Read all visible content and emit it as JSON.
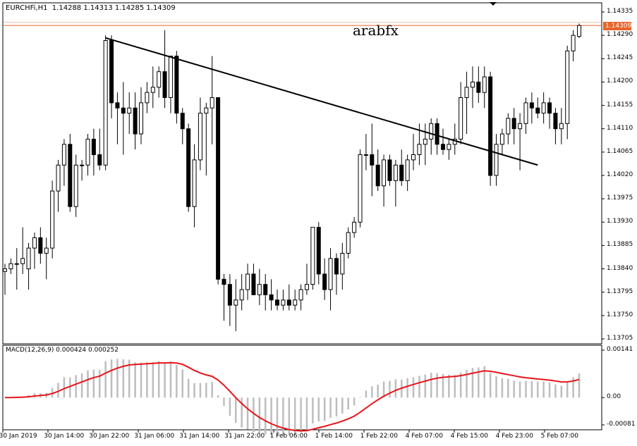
{
  "chart": {
    "symbol_info": "EURCHFi,H1  1.14288 1.14313 1.14285 1.14309",
    "watermark": "arabfx",
    "current_price": "1.14309",
    "current_price_hidden": "1.14312",
    "price_axis": [
      "1.14335",
      "1.14290",
      "1.14245",
      "1.14200",
      "1.14155",
      "1.14110",
      "1.14065",
      "1.14020",
      "1.13975",
      "1.13930",
      "1.13885",
      "1.13840",
      "1.13795",
      "1.13750",
      "1.13705"
    ],
    "time_axis": [
      "30 Jan 2019",
      "30 Jan 14:00",
      "30 Jan 22:00",
      "31 Jan 06:00",
      "31 Jan 14:00",
      "31 Jan 22:00",
      "1 Feb 06:00",
      "1 Feb 14:00",
      "1 Feb 22:00",
      "4 Feb 07:00",
      "4 Feb 15:00",
      "4 Feb 23:00",
      "5 Feb 07:00"
    ],
    "macd_label": "MACD(12,26,9) 0.000424 0.000252",
    "macd_axis": [
      "0.00141",
      "0.00",
      "-0.00081"
    ],
    "colors": {
      "bull": "#ffffff",
      "bear": "#000000",
      "signal": "#e8141a",
      "hist": "#bdbdbd",
      "price_line": "#e8642a"
    }
  },
  "chart_data": {
    "type": "candlestick",
    "title": "EURCHFi,H1",
    "ylim": [
      1.13705,
      1.14335
    ],
    "ohlc": [
      [
        1.13835,
        1.1385,
        1.1379,
        1.1384
      ],
      [
        1.1384,
        1.1386,
        1.1383,
        1.1385
      ],
      [
        1.1385,
        1.1388,
        1.138,
        1.1385
      ],
      [
        1.1385,
        1.1392,
        1.1383,
        1.1386
      ],
      [
        1.1384,
        1.1389,
        1.138,
        1.1388
      ],
      [
        1.1388,
        1.1391,
        1.1384,
        1.139
      ],
      [
        1.139,
        1.1392,
        1.1385,
        1.1387
      ],
      [
        1.1387,
        1.139,
        1.1382,
        1.1388
      ],
      [
        1.1388,
        1.1401,
        1.1386,
        1.1399
      ],
      [
        1.1399,
        1.1405,
        1.1395,
        1.1404
      ],
      [
        1.1404,
        1.1409,
        1.14,
        1.1408
      ],
      [
        1.1408,
        1.141,
        1.1395,
        1.1396
      ],
      [
        1.1396,
        1.1406,
        1.1394,
        1.1404
      ],
      [
        1.1404,
        1.1405,
        1.1401,
        1.1404
      ],
      [
        1.1404,
        1.141,
        1.1402,
        1.1409
      ],
      [
        1.1409,
        1.1411,
        1.1402,
        1.1406
      ],
      [
        1.1406,
        1.1411,
        1.1403,
        1.1404
      ],
      [
        1.1404,
        1.1429,
        1.1403,
        1.1428
      ],
      [
        1.1428,
        1.1429,
        1.1413,
        1.1416
      ],
      [
        1.1416,
        1.1418,
        1.1408,
        1.1415
      ],
      [
        1.1415,
        1.142,
        1.1406,
        1.1414
      ],
      [
        1.1414,
        1.1418,
        1.141,
        1.1415
      ],
      [
        1.1415,
        1.1418,
        1.1407,
        1.141
      ],
      [
        1.141,
        1.1419,
        1.1408,
        1.1416
      ],
      [
        1.1416,
        1.142,
        1.1414,
        1.1418
      ],
      [
        1.1418,
        1.1423,
        1.1415,
        1.1419
      ],
      [
        1.1419,
        1.1423,
        1.1417,
        1.1422
      ],
      [
        1.1422,
        1.143,
        1.1415,
        1.1417
      ],
      [
        1.1417,
        1.1425,
        1.1414,
        1.1425
      ],
      [
        1.1425,
        1.1426,
        1.1412,
        1.1414
      ],
      [
        1.1414,
        1.1415,
        1.1408,
        1.1411
      ],
      [
        1.1411,
        1.1412,
        1.1395,
        1.1396
      ],
      [
        1.1396,
        1.1408,
        1.1392,
        1.1405
      ],
      [
        1.1405,
        1.1417,
        1.1403,
        1.1414
      ],
      [
        1.1414,
        1.1416,
        1.1402,
        1.1415
      ],
      [
        1.1415,
        1.1425,
        1.1408,
        1.1417
      ],
      [
        1.1417,
        1.1417,
        1.1381,
        1.1382
      ],
      [
        1.1382,
        1.1383,
        1.1374,
        1.1381
      ],
      [
        1.1381,
        1.1383,
        1.1373,
        1.1377
      ],
      [
        1.1377,
        1.1382,
        1.1372,
        1.1378
      ],
      [
        1.1378,
        1.1383,
        1.1376,
        1.138
      ],
      [
        1.138,
        1.1385,
        1.1378,
        1.1383
      ],
      [
        1.1383,
        1.1385,
        1.1379,
        1.1379
      ],
      [
        1.1379,
        1.1384,
        1.1377,
        1.1381
      ],
      [
        1.1381,
        1.1383,
        1.1376,
        1.1379
      ],
      [
        1.1379,
        1.1382,
        1.1376,
        1.1378
      ],
      [
        1.1378,
        1.138,
        1.1376,
        1.1377
      ],
      [
        1.1377,
        1.138,
        1.1376,
        1.1378
      ],
      [
        1.1378,
        1.1381,
        1.1376,
        1.1377
      ],
      [
        1.1377,
        1.138,
        1.1376,
        1.1378
      ],
      [
        1.1378,
        1.1381,
        1.1376,
        1.138
      ],
      [
        1.138,
        1.1385,
        1.1379,
        1.1381
      ],
      [
        1.1381,
        1.1392,
        1.138,
        1.1392
      ],
      [
        1.1392,
        1.1393,
        1.1381,
        1.1383
      ],
      [
        1.1383,
        1.1386,
        1.1378,
        1.138
      ],
      [
        1.138,
        1.1388,
        1.1376,
        1.1386
      ],
      [
        1.1386,
        1.1387,
        1.1379,
        1.1383
      ],
      [
        1.1383,
        1.1389,
        1.138,
        1.1387
      ],
      [
        1.1387,
        1.1392,
        1.1386,
        1.1391
      ],
      [
        1.1391,
        1.1394,
        1.139,
        1.1393
      ],
      [
        1.1393,
        1.1407,
        1.1392,
        1.1406
      ],
      [
        1.1406,
        1.141,
        1.1403,
        1.1406
      ],
      [
        1.1406,
        1.1412,
        1.1398,
        1.1404
      ],
      [
        1.1404,
        1.1407,
        1.1399,
        1.14
      ],
      [
        1.14,
        1.1406,
        1.1396,
        1.1405
      ],
      [
        1.1405,
        1.1406,
        1.14,
        1.1401
      ],
      [
        1.1401,
        1.1405,
        1.1396,
        1.1404
      ],
      [
        1.1404,
        1.1407,
        1.14,
        1.1401
      ],
      [
        1.1401,
        1.1406,
        1.1399,
        1.1405
      ],
      [
        1.1405,
        1.141,
        1.1403,
        1.1406
      ],
      [
        1.1406,
        1.1412,
        1.1404,
        1.1408
      ],
      [
        1.1408,
        1.1412,
        1.1404,
        1.1409
      ],
      [
        1.1409,
        1.1413,
        1.1406,
        1.1412
      ],
      [
        1.1412,
        1.1413,
        1.1406,
        1.1408
      ],
      [
        1.1408,
        1.1411,
        1.1406,
        1.1407
      ],
      [
        1.1407,
        1.1409,
        1.1405,
        1.1408
      ],
      [
        1.1408,
        1.1412,
        1.1406,
        1.1409
      ],
      [
        1.1409,
        1.142,
        1.1408,
        1.1417
      ],
      [
        1.1417,
        1.1422,
        1.141,
        1.1419
      ],
      [
        1.1419,
        1.1423,
        1.1415,
        1.142
      ],
      [
        1.142,
        1.1423,
        1.1416,
        1.1418
      ],
      [
        1.1418,
        1.1423,
        1.1415,
        1.1421
      ],
      [
        1.1421,
        1.1422,
        1.14,
        1.1402
      ],
      [
        1.1402,
        1.141,
        1.14,
        1.1408
      ],
      [
        1.1408,
        1.1411,
        1.1406,
        1.141
      ],
      [
        1.141,
        1.1414,
        1.1408,
        1.1413
      ],
      [
        1.1413,
        1.1415,
        1.1408,
        1.1411
      ],
      [
        1.1411,
        1.1414,
        1.1403,
        1.1412
      ],
      [
        1.1412,
        1.1417,
        1.141,
        1.1416
      ],
      [
        1.1416,
        1.1418,
        1.1412,
        1.1415
      ],
      [
        1.1415,
        1.1417,
        1.1413,
        1.1414
      ],
      [
        1.1414,
        1.1418,
        1.1412,
        1.1416
      ],
      [
        1.1416,
        1.1417,
        1.1411,
        1.1414
      ],
      [
        1.1414,
        1.1415,
        1.1408,
        1.1411
      ],
      [
        1.1411,
        1.1415,
        1.1408,
        1.1412
      ],
      [
        1.1412,
        1.1427,
        1.1409,
        1.1426
      ],
      [
        1.1426,
        1.143,
        1.1424,
        1.1429
      ],
      [
        1.14288,
        1.14313,
        1.14285,
        1.14309
      ]
    ],
    "trendline": [
      [
        1.14285,
        1.1404
      ]
    ],
    "macd": {
      "ylim": [
        -0.00081,
        0.00141
      ],
      "signal_name": "MACD(12,26,9)",
      "main": 0.000424,
      "signal": 0.000252
    }
  }
}
